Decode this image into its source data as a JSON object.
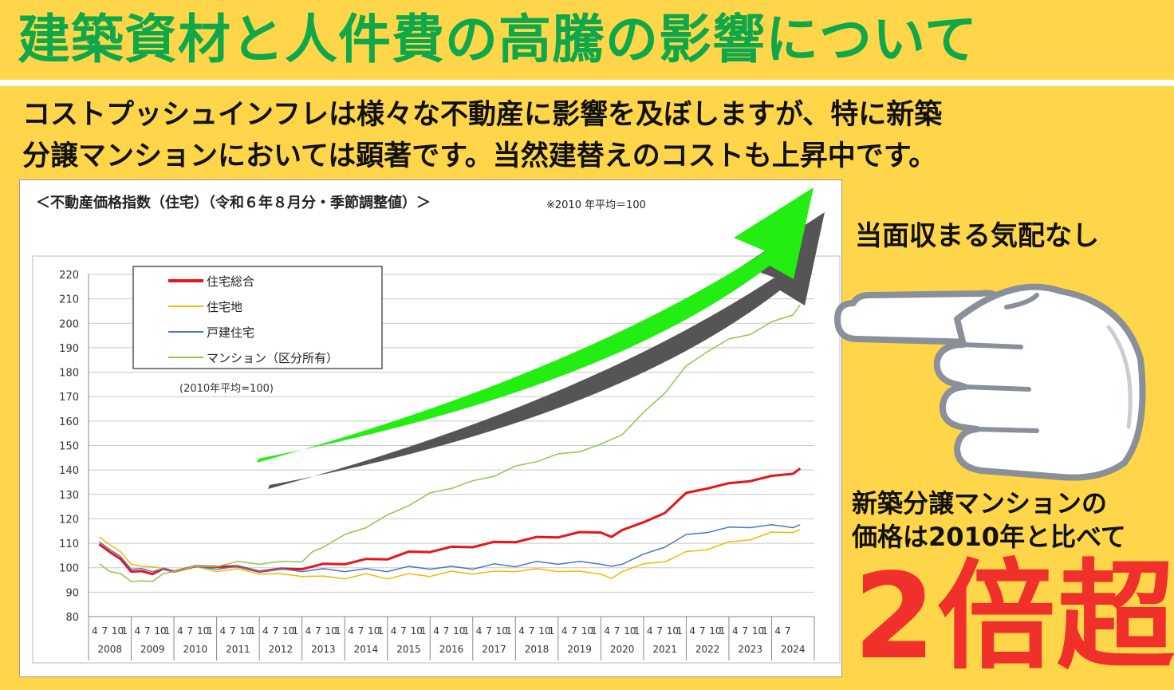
{
  "banner": {
    "title": "建築資材と人件費の高騰の影響について"
  },
  "intro": {
    "line1": "コストプッシュインフレは様々な不動産に影響を及ぼしますが、特に新築",
    "line2": "分譲マンションにおいては顕著です。当然建替えのコストも上昇中です。"
  },
  "side": {
    "headline": "当面収まる気配なし",
    "sub_line1": "新築分譲マンションの",
    "sub_line2": "価格は2010年と比べて",
    "big": "2倍超"
  },
  "colors": {
    "title_green": "#0ea84b",
    "big_red": "#f0302a",
    "background": "#ffd54a",
    "arrow_green": "#22ee11"
  },
  "icons": [
    "pointing-hand-icon",
    "upward-arrow-icon"
  ],
  "chart_data": {
    "type": "line",
    "title": "＜不動産価格指数（住宅）（令和６年８月分・季節調整値）＞",
    "note": "※2010 年平均＝100",
    "annotation": "(2010年平均=100)",
    "ylim": [
      80,
      220
    ],
    "yticks": [
      80,
      90,
      100,
      110,
      120,
      130,
      140,
      150,
      160,
      170,
      180,
      190,
      200,
      210,
      220
    ],
    "years": [
      "2008",
      "2009",
      "2010",
      "2011",
      "2012",
      "2013",
      "2014",
      "2015",
      "2016",
      "2017",
      "2018",
      "2019",
      "2020",
      "2021",
      "2022",
      "2023",
      "2024"
    ],
    "month_ticks": [
      "4",
      "7",
      "10",
      "1"
    ],
    "grid": true,
    "legend_position": "top-left",
    "x_start": 2008.25,
    "x_end": 2024.67,
    "series": [
      {
        "name": "住宅総合",
        "color": "#e8141b",
        "width": 3,
        "x": [
          2008.25,
          2008.5,
          2008.75,
          2009.0,
          2009.25,
          2009.5,
          2009.75,
          2010.0,
          2010.5,
          2011.0,
          2011.5,
          2012.0,
          2012.5,
          2013.0,
          2013.5,
          2014.0,
          2014.5,
          2015.0,
          2015.5,
          2016.0,
          2016.5,
          2017.0,
          2017.5,
          2018.0,
          2018.5,
          2019.0,
          2019.5,
          2020.0,
          2020.25,
          2020.5,
          2021.0,
          2021.5,
          2022.0,
          2022.5,
          2023.0,
          2023.5,
          2024.0,
          2024.5,
          2024.67
        ],
        "y": [
          109,
          107,
          103,
          99,
          98,
          98,
          99,
          99,
          100,
          101,
          100,
          99,
          99,
          100,
          101,
          102,
          103,
          104,
          106,
          107,
          108,
          109,
          110,
          111,
          112,
          113,
          114,
          115,
          112,
          116,
          118,
          123,
          130,
          133,
          134,
          136,
          137,
          139,
          140
        ]
      },
      {
        "name": "住宅地",
        "color": "#f5b800",
        "width": 1.5,
        "x": [
          2008.25,
          2008.5,
          2008.75,
          2009.0,
          2009.25,
          2009.5,
          2009.75,
          2010.0,
          2010.5,
          2011.0,
          2011.5,
          2012.0,
          2012.5,
          2013.0,
          2013.5,
          2014.0,
          2014.5,
          2015.0,
          2015.5,
          2016.0,
          2016.5,
          2017.0,
          2017.5,
          2018.0,
          2018.5,
          2019.0,
          2019.5,
          2020.0,
          2020.25,
          2020.5,
          2021.0,
          2021.5,
          2022.0,
          2022.5,
          2023.0,
          2023.5,
          2024.0,
          2024.5,
          2024.67
        ],
        "y": [
          112,
          110,
          106,
          102,
          100,
          101,
          99,
          99,
          100,
          99,
          99,
          98,
          97,
          97,
          96,
          96,
          97,
          96,
          97,
          97,
          98,
          98,
          98,
          99,
          99,
          99,
          98,
          98,
          95,
          99,
          101,
          103,
          106,
          108,
          110,
          112,
          114,
          115,
          115
        ]
      },
      {
        "name": "戸建住宅",
        "color": "#4a76c6",
        "width": 1.5,
        "x": [
          2008.25,
          2008.5,
          2008.75,
          2009.0,
          2009.25,
          2009.5,
          2009.75,
          2010.0,
          2010.5,
          2011.0,
          2011.5,
          2012.0,
          2012.5,
          2013.0,
          2013.5,
          2014.0,
          2014.5,
          2015.0,
          2015.5,
          2016.0,
          2016.5,
          2017.0,
          2017.5,
          2018.0,
          2018.5,
          2019.0,
          2019.5,
          2020.0,
          2020.25,
          2020.5,
          2021.0,
          2021.5,
          2022.0,
          2022.5,
          2023.0,
          2023.5,
          2024.0,
          2024.5,
          2024.67
        ],
        "y": [
          110,
          108,
          104,
          100,
          99,
          99,
          99,
          99,
          100,
          100,
          100,
          99,
          99,
          99,
          99,
          99,
          99,
          99,
          100,
          100,
          100,
          100,
          101,
          101,
          102,
          102,
          102,
          102,
          100,
          102,
          105,
          109,
          113,
          115,
          116,
          117,
          117,
          117,
          117
        ]
      },
      {
        "name": "マンション（区分所有）",
        "color": "#8cc84b",
        "width": 1.5,
        "x": [
          2008.25,
          2008.5,
          2008.75,
          2009.0,
          2009.25,
          2009.5,
          2009.75,
          2010.0,
          2010.5,
          2011.0,
          2011.5,
          2012.0,
          2012.5,
          2013.0,
          2013.25,
          2013.5,
          2014.0,
          2014.5,
          2015.0,
          2015.5,
          2016.0,
          2016.5,
          2017.0,
          2017.5,
          2018.0,
          2018.5,
          2019.0,
          2019.5,
          2020.0,
          2020.5,
          2021.0,
          2021.5,
          2022.0,
          2022.5,
          2023.0,
          2023.5,
          2024.0,
          2024.5,
          2024.67
        ],
        "y": [
          101,
          99,
          97,
          95,
          94,
          95,
          97,
          99,
          100,
          101,
          102,
          102,
          102,
          103,
          106,
          109,
          113,
          117,
          121,
          126,
          130,
          133,
          135,
          138,
          141,
          144,
          146,
          148,
          150,
          155,
          163,
          172,
          182,
          189,
          193,
          196,
          200,
          204,
          207
        ]
      }
    ]
  }
}
